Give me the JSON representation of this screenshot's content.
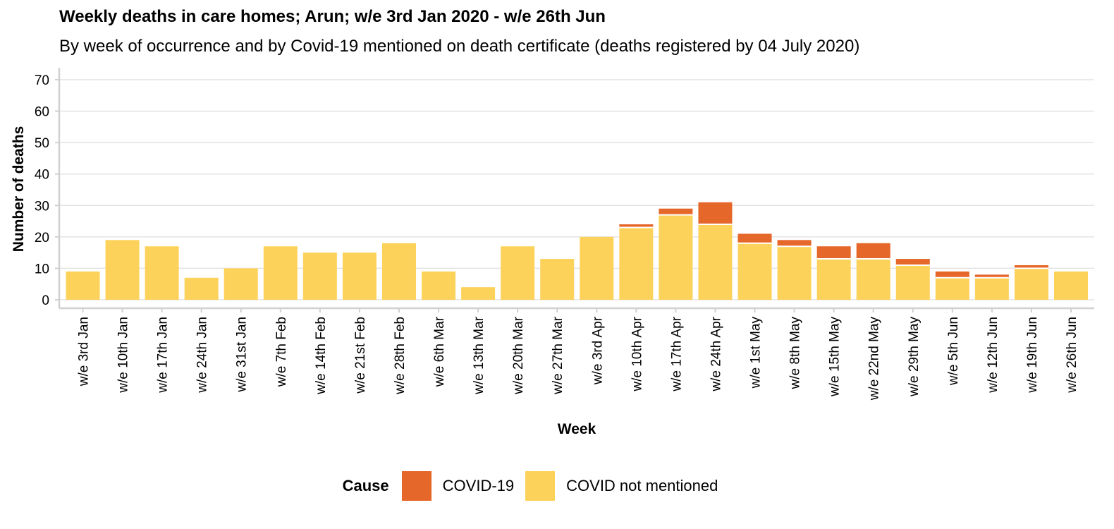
{
  "chart_data": {
    "type": "bar",
    "stacked": true,
    "title": "Weekly deaths in care homes; Arun; w/e 3rd Jan 2020 - w/e 26th Jun",
    "subtitle": "By week of occurrence and by Covid-19 mentioned on death certificate (deaths registered by 04 July 2020)",
    "xlabel": "Week",
    "ylabel": "Number of deaths",
    "ylim": [
      0,
      70
    ],
    "yticks": [
      0,
      10,
      20,
      30,
      40,
      50,
      60,
      70
    ],
    "grid": true,
    "legend_position": "bottom",
    "legend_title": "Cause",
    "categories": [
      "w/e 3rd Jan",
      "w/e 10th Jan",
      "w/e 17th Jan",
      "w/e 24th Jan",
      "w/e 31st Jan",
      "w/e 7th Feb",
      "w/e 14th Feb",
      "w/e 21st Feb",
      "w/e 28th Feb",
      "w/e 6th Mar",
      "w/e 13th Mar",
      "w/e 20th Mar",
      "w/e 27th Mar",
      "w/e 3rd Apr",
      "w/e 10th Apr",
      "w/e 17th Apr",
      "w/e 24th Apr",
      "w/e 1st May",
      "w/e 8th May",
      "w/e 15th May",
      "w/e 22nd May",
      "w/e 29th May",
      "w/e 5th Jun",
      "w/e 12th Jun",
      "w/e 19th Jun",
      "w/e 26th Jun"
    ],
    "series": [
      {
        "name": "COVID not mentioned",
        "color": "#fdd25a",
        "values": [
          9,
          19,
          17,
          7,
          10,
          17,
          15,
          15,
          18,
          9,
          4,
          17,
          13,
          20,
          23,
          27,
          24,
          18,
          17,
          13,
          13,
          11,
          7,
          7,
          10,
          9
        ]
      },
      {
        "name": "COVID-19",
        "color": "#e6672a",
        "values": [
          0,
          0,
          0,
          0,
          0,
          0,
          0,
          0,
          0,
          0,
          0,
          0,
          0,
          0,
          1,
          2,
          7,
          3,
          2,
          4,
          5,
          2,
          2,
          1,
          1,
          0
        ]
      }
    ],
    "legend_order": [
      "COVID-19",
      "COVID not mentioned"
    ]
  }
}
